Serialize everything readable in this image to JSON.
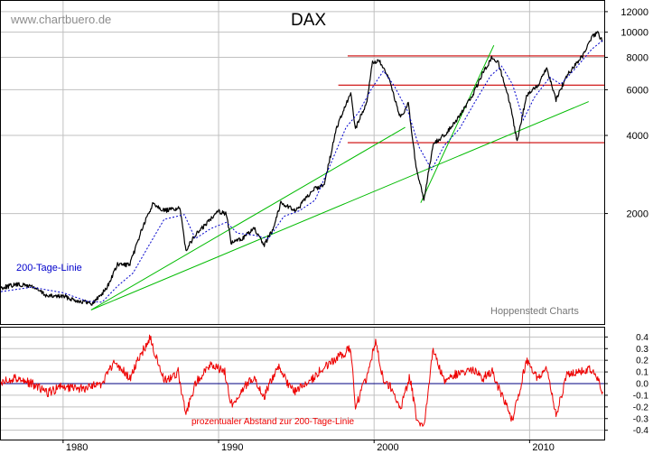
{
  "header": {
    "watermark": "www.chartbuero.de",
    "title": "DAX"
  },
  "credit": "Hoppenstedt Charts",
  "colors": {
    "price": "#000000",
    "ma": "#0000cc",
    "support_resistance": "#cc0000",
    "trendlines": "#00bb00",
    "oscillator": "#ee0000",
    "zero_line": "#000080",
    "grid": "#c0c0c0",
    "axis_text": "#000000",
    "watermark": "#8c8c8c"
  },
  "chart_data": [
    {
      "type": "line",
      "title": "DAX",
      "scale": "log",
      "xlim": [
        1976,
        2014.8
      ],
      "ylim": [
        750,
        13200
      ],
      "x_ticks": [
        1980,
        1990,
        2000,
        2010
      ],
      "y_ticks": [
        2000,
        4000,
        6000,
        8000,
        10000,
        12000
      ],
      "grid": true,
      "series": [
        {
          "name": "",
          "style": "line",
          "points": [
            [
              1976.0,
              1035
            ],
            [
              1977.0,
              1065
            ],
            [
              1978.0,
              1050
            ],
            [
              1979.0,
              960
            ],
            [
              1980.0,
              960
            ],
            [
              1981.0,
              920
            ],
            [
              1981.9,
              900
            ],
            [
              1982.8,
              1030
            ],
            [
              1983.5,
              1270
            ],
            [
              1984.3,
              1270
            ],
            [
              1985.0,
              1700
            ],
            [
              1985.8,
              2200
            ],
            [
              1986.5,
              2050
            ],
            [
              1987.5,
              2100
            ],
            [
              1987.9,
              1450
            ],
            [
              1988.5,
              1650
            ],
            [
              1989.3,
              1850
            ],
            [
              1989.9,
              2050
            ],
            [
              1990.5,
              2000
            ],
            [
              1990.8,
              1540
            ],
            [
              1991.5,
              1600
            ],
            [
              1992.3,
              1750
            ],
            [
              1992.9,
              1500
            ],
            [
              1993.5,
              1750
            ],
            [
              1994.0,
              2200
            ],
            [
              1995.0,
              2050
            ],
            [
              1996.0,
              2450
            ],
            [
              1996.8,
              2600
            ],
            [
              1997.6,
              4300
            ],
            [
              1998.5,
              5800
            ],
            [
              1998.8,
              4250
            ],
            [
              1999.5,
              5300
            ],
            [
              1999.9,
              7600
            ],
            [
              2000.3,
              7800
            ],
            [
              2001.0,
              6500
            ],
            [
              2001.7,
              4650
            ],
            [
              2002.2,
              5300
            ],
            [
              2002.7,
              3000
            ],
            [
              2003.2,
              2250
            ],
            [
              2003.8,
              3700
            ],
            [
              2004.5,
              4000
            ],
            [
              2005.5,
              4750
            ],
            [
              2006.4,
              5800
            ],
            [
              2007.0,
              7000
            ],
            [
              2007.6,
              8000
            ],
            [
              2008.0,
              7600
            ],
            [
              2008.7,
              5400
            ],
            [
              2009.2,
              3800
            ],
            [
              2009.8,
              5700
            ],
            [
              2010.5,
              6200
            ],
            [
              2011.1,
              7300
            ],
            [
              2011.7,
              5500
            ],
            [
              2012.4,
              6800
            ],
            [
              2013.4,
              8100
            ],
            [
              2014.1,
              9700
            ],
            [
              2014.4,
              9900
            ],
            [
              2014.7,
              9200
            ]
          ]
        },
        {
          "name": "200-Tage-Linie",
          "style": "dotted",
          "points": [
            [
              1976.0,
              1000
            ],
            [
              1978.0,
              1040
            ],
            [
              1980.0,
              990
            ],
            [
              1981.5,
              920
            ],
            [
              1982.5,
              910
            ],
            [
              1983.5,
              1050
            ],
            [
              1984.5,
              1180
            ],
            [
              1985.5,
              1500
            ],
            [
              1986.5,
              1900
            ],
            [
              1987.8,
              1980
            ],
            [
              1988.5,
              1600
            ],
            [
              1989.5,
              1750
            ],
            [
              1990.5,
              1850
            ],
            [
              1991.2,
              1680
            ],
            [
              1992.3,
              1650
            ],
            [
              1993.2,
              1600
            ],
            [
              1994.2,
              1950
            ],
            [
              1995.2,
              2050
            ],
            [
              1996.2,
              2250
            ],
            [
              1997.2,
              3100
            ],
            [
              1998.2,
              4300
            ],
            [
              1999.0,
              4900
            ],
            [
              1999.8,
              6000
            ],
            [
              2000.6,
              7100
            ],
            [
              2001.3,
              6200
            ],
            [
              2002.2,
              4900
            ],
            [
              2002.9,
              3600
            ],
            [
              2003.7,
              2950
            ],
            [
              2004.5,
              3650
            ],
            [
              2005.5,
              4250
            ],
            [
              2006.5,
              5400
            ],
            [
              2007.5,
              6800
            ],
            [
              2008.2,
              7400
            ],
            [
              2008.9,
              6300
            ],
            [
              2009.6,
              4600
            ],
            [
              2010.3,
              5600
            ],
            [
              2011.3,
              6700
            ],
            [
              2012.0,
              6300
            ],
            [
              2013.0,
              7300
            ],
            [
              2014.0,
              8600
            ],
            [
              2014.7,
              9300
            ]
          ]
        },
        {
          "name": "",
          "style": "hline",
          "points": [
            [
              1998.3,
              8100
            ],
            [
              2014.8,
              8100
            ]
          ]
        },
        {
          "name": "",
          "style": "hline",
          "points": [
            [
              1997.7,
              6250
            ],
            [
              2014.8,
              6250
            ]
          ]
        },
        {
          "name": "",
          "style": "hline",
          "points": [
            [
              1998.3,
              3750
            ],
            [
              2014.8,
              3750
            ]
          ]
        },
        {
          "name": "",
          "style": "trendline",
          "points": [
            [
              1981.8,
              850
            ],
            [
              2002.0,
              4300
            ]
          ]
        },
        {
          "name": "",
          "style": "trendline",
          "points": [
            [
              1981.8,
              850
            ],
            [
              2013.8,
              5400
            ]
          ]
        },
        {
          "name": "",
          "style": "trendline",
          "points": [
            [
              2003.0,
              2200
            ],
            [
              2007.7,
              8900
            ]
          ]
        }
      ]
    },
    {
      "type": "area",
      "title": "prozentualer Abstand zur 200-Tage-Linie",
      "xlim": [
        1976,
        2014.8
      ],
      "ylim": [
        -0.48,
        0.48
      ],
      "x_ticks": [
        1980,
        1990,
        2000,
        2010
      ],
      "y_ticks": [
        0.4,
        0.3,
        0.2,
        0.1,
        0.0,
        -0.1,
        -0.2,
        -0.3,
        -0.4
      ],
      "y_tick_labels": [
        "0.4",
        "0.3",
        "0.2",
        "0.1",
        "0.0",
        "-0.1",
        "-0.2",
        "-0.3",
        "-0.4"
      ],
      "grid": true,
      "series": [
        {
          "name": "prozentualer Abstand zur 200-Tage-Linie",
          "points": [
            [
              1976.0,
              0.02
            ],
            [
              1977.0,
              0.05
            ],
            [
              1978.0,
              0.0
            ],
            [
              1979.0,
              -0.08
            ],
            [
              1980.0,
              -0.02
            ],
            [
              1981.0,
              -0.05
            ],
            [
              1982.5,
              0.0
            ],
            [
              1983.3,
              0.18
            ],
            [
              1984.3,
              0.05
            ],
            [
              1985.0,
              0.25
            ],
            [
              1985.6,
              0.39
            ],
            [
              1986.5,
              0.02
            ],
            [
              1987.4,
              0.1
            ],
            [
              1987.9,
              -0.27
            ],
            [
              1988.5,
              0.0
            ],
            [
              1989.4,
              0.16
            ],
            [
              1990.4,
              0.1
            ],
            [
              1990.8,
              -0.18
            ],
            [
              1991.7,
              -0.02
            ],
            [
              1992.3,
              0.05
            ],
            [
              1992.9,
              -0.12
            ],
            [
              1993.8,
              0.15
            ],
            [
              1994.8,
              -0.07
            ],
            [
              1995.7,
              0.0
            ],
            [
              1996.6,
              0.12
            ],
            [
              1997.6,
              0.22
            ],
            [
              1998.5,
              0.3
            ],
            [
              1998.8,
              -0.2
            ],
            [
              1999.5,
              0.05
            ],
            [
              2000.1,
              0.37
            ],
            [
              2000.6,
              0.02
            ],
            [
              2001.2,
              -0.05
            ],
            [
              2001.7,
              -0.22
            ],
            [
              2002.3,
              0.06
            ],
            [
              2002.8,
              -0.35
            ],
            [
              2003.2,
              -0.38
            ],
            [
              2003.8,
              0.3
            ],
            [
              2004.5,
              0.02
            ],
            [
              2005.5,
              0.1
            ],
            [
              2006.4,
              0.12
            ],
            [
              2007.0,
              0.05
            ],
            [
              2007.6,
              0.1
            ],
            [
              2008.2,
              -0.1
            ],
            [
              2008.9,
              -0.32
            ],
            [
              2009.2,
              -0.15
            ],
            [
              2009.8,
              0.2
            ],
            [
              2010.5,
              0.05
            ],
            [
              2011.1,
              0.15
            ],
            [
              2011.7,
              -0.28
            ],
            [
              2012.4,
              0.07
            ],
            [
              2013.4,
              0.11
            ],
            [
              2014.1,
              0.12
            ],
            [
              2014.7,
              -0.07
            ]
          ]
        }
      ]
    }
  ]
}
